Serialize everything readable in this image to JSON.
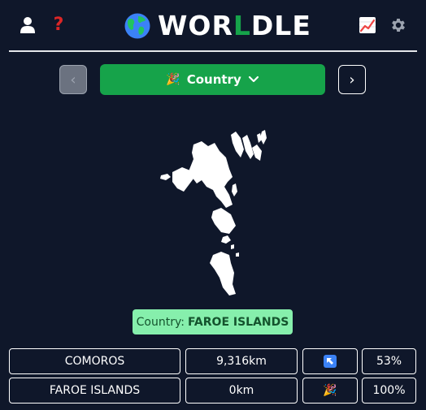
{
  "header": {
    "title_prefix": "WOR",
    "title_accent": "L",
    "title_suffix": "DLE",
    "help_label": "?",
    "accent_color": "#16a34a"
  },
  "toolbar": {
    "prev_label": "‹",
    "next_label": "›",
    "mode_emoji": "🎉",
    "mode_label": "Country"
  },
  "map": {
    "country": "Faroe Islands"
  },
  "answer": {
    "prefix": "Country:",
    "value": "FAROE ISLANDS"
  },
  "guesses": [
    {
      "name": "COMOROS",
      "distance": "9,316km",
      "direction_icon": "arrow-up-left-icon",
      "percent": "53%"
    },
    {
      "name": "FAROE ISLANDS",
      "distance": "0km",
      "direction_icon": "party-popper-icon",
      "direction_text": "🎉",
      "percent": "100%"
    }
  ]
}
